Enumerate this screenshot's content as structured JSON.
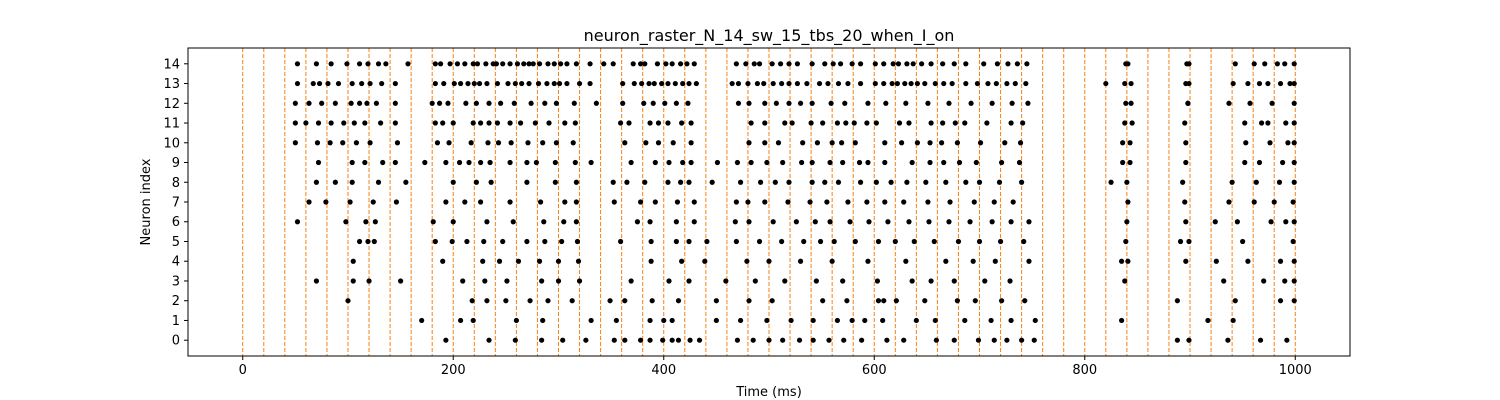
{
  "chart_data": {
    "type": "scatter",
    "title": "neuron_raster_N_14_sw_15_tbs_20_when_I_on",
    "xlabel": "Time (ms)",
    "ylabel": "Neuron index",
    "xlim": [
      -52,
      1052
    ],
    "ylim": [
      -0.8,
      14.8
    ],
    "xticks": [
      0,
      200,
      400,
      600,
      800,
      1000
    ],
    "yticks": [
      0,
      1,
      2,
      3,
      4,
      5,
      6,
      7,
      8,
      9,
      10,
      11,
      12,
      13,
      14
    ],
    "grid": false,
    "marker_color": "#000000",
    "vline_color": "#ff7f0e",
    "vline_style": "dashed",
    "vlines": [
      0,
      20,
      40,
      60,
      80,
      100,
      120,
      140,
      160,
      180,
      200,
      220,
      240,
      260,
      280,
      300,
      320,
      340,
      360,
      380,
      400,
      420,
      440,
      460,
      480,
      500,
      520,
      540,
      560,
      580,
      600,
      620,
      640,
      660,
      680,
      700,
      720,
      740,
      760,
      780,
      800,
      820,
      840,
      860,
      880,
      900,
      920,
      940,
      960,
      980,
      1000
    ],
    "series": [
      {
        "neuron": 14,
        "spikes": [
          52,
          70,
          84,
          99,
          111,
          119,
          129,
          136,
          157,
          183,
          188,
          197,
          204,
          211,
          219,
          223,
          231,
          238,
          241,
          247,
          254,
          261,
          267,
          272,
          276,
          282,
          290,
          296,
          302,
          308,
          317,
          330,
          343,
          352,
          371,
          378,
          382,
          394,
          402,
          408,
          416,
          422,
          429,
          469,
          478,
          486,
          491,
          503,
          511,
          519,
          527,
          541,
          553,
          561,
          568,
          579,
          587,
          601,
          609,
          618,
          623,
          631,
          637,
          645,
          654,
          665,
          676,
          687,
          704,
          717,
          727,
          736,
          745,
          839,
          841,
          897,
          899,
          943,
          961,
          971,
          983,
          990,
          999
        ]
      },
      {
        "neuron": 13,
        "spikes": [
          52,
          67,
          73,
          81,
          91,
          104,
          113,
          121,
          132,
          145,
          183,
          191,
          201,
          207,
          214,
          220,
          225,
          232,
          242,
          252,
          259,
          265,
          272,
          281,
          289,
          296,
          301,
          308,
          320,
          330,
          361,
          372,
          379,
          386,
          391,
          398,
          404,
          411,
          418,
          424,
          431,
          465,
          471,
          480,
          489,
          495,
          504,
          512,
          519,
          527,
          536,
          548,
          556,
          566,
          575,
          587,
          601,
          609,
          617,
          622,
          629,
          635,
          641,
          648,
          658,
          666,
          674,
          687,
          698,
          708,
          716,
          726,
          734,
          744,
          820,
          838,
          844,
          896,
          899,
          941,
          955,
          966,
          974,
          986,
          995,
          999
        ]
      },
      {
        "neuron": 12,
        "spikes": [
          50,
          63,
          75,
          88,
          103,
          111,
          118,
          127,
          145,
          180,
          187,
          195,
          212,
          222,
          234,
          245,
          258,
          274,
          287,
          298,
          315,
          336,
          361,
          381,
          390,
          401,
          412,
          423,
          471,
          481,
          496,
          507,
          519,
          530,
          541,
          559,
          572,
          594,
          611,
          630,
          651,
          671,
          692,
          712,
          731,
          746,
          839,
          844,
          898,
          898,
          937,
          957,
          978,
          999
        ]
      },
      {
        "neuron": 11,
        "spikes": [
          50,
          60,
          72,
          84,
          96,
          106,
          116,
          131,
          145,
          183,
          190,
          200,
          219,
          226,
          234,
          242,
          254,
          264,
          278,
          291,
          306,
          316,
          359,
          367,
          387,
          395,
          404,
          417,
          426,
          483,
          496,
          515,
          522,
          540,
          551,
          565,
          573,
          581,
          593,
          602,
          624,
          633,
          654,
          665,
          677,
          686,
          707,
          730,
          741,
          838,
          845,
          895,
          952,
          968,
          974,
          991,
          999
        ]
      },
      {
        "neuron": 10,
        "spikes": [
          50,
          71,
          83,
          95,
          108,
          121,
          147,
          185,
          196,
          217,
          233,
          243,
          255,
          271,
          285,
          298,
          314,
          363,
          383,
          395,
          409,
          426,
          481,
          496,
          509,
          532,
          546,
          560,
          569,
          582,
          610,
          626,
          641,
          653,
          664,
          679,
          701,
          724,
          739,
          836,
          843,
          896,
          953,
          976,
          993,
          999
        ]
      },
      {
        "neuron": 9,
        "spikes": [
          72,
          104,
          116,
          133,
          145,
          173,
          193,
          206,
          215,
          226,
          235,
          254,
          270,
          279,
          297,
          316,
          331,
          369,
          392,
          405,
          418,
          426,
          451,
          470,
          483,
          498,
          513,
          531,
          541,
          558,
          570,
          586,
          594,
          610,
          636,
          653,
          666,
          681,
          697,
          721,
          738,
          836,
          843,
          896,
          952,
          966,
          988,
          999
        ]
      },
      {
        "neuron": 8,
        "spikes": [
          70,
          88,
          104,
          129,
          155,
          200,
          222,
          236,
          270,
          297,
          317,
          352,
          365,
          382,
          404,
          416,
          424,
          446,
          473,
          492,
          506,
          519,
          541,
          553,
          566,
          587,
          602,
          616,
          631,
          649,
          668,
          687,
          700,
          719,
          740,
          825,
          840,
          893,
          940,
          963,
          985,
          999
        ]
      },
      {
        "neuron": 7,
        "spikes": [
          63,
          79,
          102,
          124,
          146,
          193,
          211,
          226,
          254,
          283,
          306,
          317,
          353,
          378,
          392,
          413,
          429,
          469,
          480,
          496,
          518,
          539,
          555,
          575,
          593,
          610,
          628,
          651,
          672,
          695,
          714,
          732,
          841,
          895,
          937,
          961,
          980,
          998
        ]
      },
      {
        "neuron": 6,
        "spikes": [
          52,
          98,
          117,
          126,
          181,
          200,
          232,
          257,
          286,
          305,
          317,
          375,
          387,
          412,
          429,
          468,
          481,
          504,
          526,
          544,
          558,
          577,
          595,
          613,
          633,
          652,
          671,
          691,
          712,
          730,
          747,
          840,
          896,
          924,
          945,
          977,
          991,
          999
        ]
      },
      {
        "neuron": 5,
        "spikes": [
          111,
          119,
          125,
          183,
          199,
          213,
          229,
          247,
          270,
          287,
          303,
          318,
          359,
          388,
          412,
          424,
          441,
          469,
          491,
          512,
          533,
          549,
          562,
          582,
          604,
          620,
          638,
          657,
          680,
          700,
          720,
          742,
          839,
          891,
          899,
          950,
          998
        ]
      },
      {
        "neuron": 4,
        "spikes": [
          105,
          190,
          228,
          244,
          262,
          282,
          300,
          319,
          388,
          417,
          439,
          479,
          500,
          530,
          560,
          594,
          630,
          668,
          694,
          715,
          747,
          835,
          841,
          896,
          925,
          955,
          986,
          999
        ]
      },
      {
        "neuron": 3,
        "spikes": [
          70,
          105,
          120,
          150,
          209,
          230,
          251,
          284,
          300,
          320,
          369,
          405,
          424,
          459,
          487,
          515,
          545,
          570,
          603,
          636,
          654,
          676,
          705,
          729,
          838,
          932,
          970,
          990,
          999
        ]
      },
      {
        "neuron": 2,
        "spikes": [
          100,
          218,
          232,
          250,
          273,
          290,
          313,
          349,
          363,
          389,
          414,
          450,
          481,
          503,
          551,
          574,
          604,
          609,
          621,
          648,
          679,
          696,
          721,
          743,
          888,
          943,
          986,
          999
        ]
      },
      {
        "neuron": 1,
        "spikes": [
          170,
          207,
          219,
          260,
          285,
          331,
          355,
          387,
          400,
          408,
          450,
          473,
          498,
          521,
          542,
          565,
          579,
          591,
          608,
          640,
          658,
          686,
          711,
          730,
          753,
          835,
          917,
          941
        ]
      },
      {
        "neuron": 0,
        "spikes": [
          193,
          234,
          259,
          284,
          304,
          326,
          353,
          363,
          378,
          387,
          399,
          408,
          414,
          425,
          434,
          470,
          485,
          500,
          513,
          529,
          542,
          557,
          571,
          588,
          612,
          628,
          659,
          676,
          699,
          714,
          726,
          740,
          752,
          888,
          899,
          936,
          967,
          992
        ]
      }
    ]
  }
}
